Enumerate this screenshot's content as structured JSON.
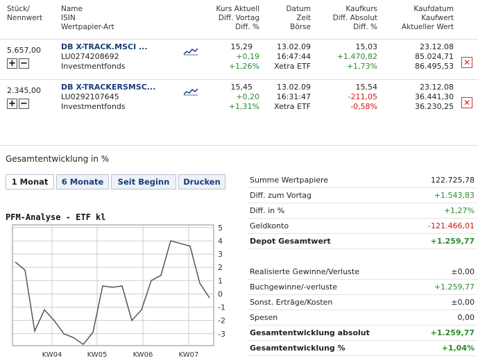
{
  "columns": {
    "col1": [
      "Stück/",
      "Nennwert"
    ],
    "col2": [
      "Name",
      "ISIN",
      "Wertpapier-Art"
    ],
    "col3": [
      "Kurs Aktuell",
      "Diff. Vortag",
      "Diff. %"
    ],
    "col4": [
      "Datum",
      "Zeit",
      "Börse"
    ],
    "col5": [
      "Kaufkurs",
      "Diff. Absolut",
      "Diff. %"
    ],
    "col6": [
      "Kaufdatum",
      "Kaufwert",
      "Aktueller Wert"
    ]
  },
  "positions": [
    {
      "qty": "5.657,00",
      "name": "DB X-TRACK.MSCI ...",
      "isin": "LU0274208692",
      "type": "Investmentfonds",
      "price": "15,29",
      "diff_prev": "+0,19",
      "diff_pct": "+1,26%",
      "date": "13.02.09",
      "time": "16:47:44",
      "exchange": "Xetra ETF",
      "buy_price": "15,03",
      "diff_abs": "+1.470,82",
      "diff_abs_pct": "+1,73%",
      "buy_date": "23.12.08",
      "buy_value": "85.024,71",
      "current_value": "86.495,53"
    },
    {
      "qty": "2.345,00",
      "name": "DB X-TRACKERSMSC...",
      "isin": "LU0292107645",
      "type": "Investmentfonds",
      "price": "15,45",
      "diff_prev": "+0,20",
      "diff_pct": "+1,31%",
      "date": "13.02.09",
      "time": "16:31:47",
      "exchange": "Xetra ETF",
      "buy_price": "15,54",
      "diff_abs": "-211,05",
      "diff_abs_pct": "-0,58%",
      "buy_date": "23.12.08",
      "buy_value": "36.441,30",
      "current_value": "36.230,25"
    }
  ],
  "icons": {
    "plus": "+",
    "minus": "−",
    "remove": "✕"
  },
  "section_title": "Gesamtentwicklung in %",
  "tabs": [
    "1 Monat",
    "6 Monate",
    "Seit Beginn",
    "Drucken"
  ],
  "chart_title": "PFM-Analyse - ETF kl",
  "chart_data": {
    "type": "line",
    "x_ticks": [
      "KW04",
      "KW05",
      "KW06",
      "KW07"
    ],
    "y_ticks": [
      5,
      4,
      3,
      2,
      1,
      0,
      -1,
      -2,
      -3
    ],
    "ylim": [
      -3.9,
      5.2
    ],
    "series": [
      {
        "values": [
          2.4,
          1.8,
          -2.8,
          -1.2,
          -2.0,
          -3.0,
          -3.3,
          -3.8,
          -2.9,
          0.6,
          0.5,
          0.6,
          -2.0,
          -1.2,
          1.0,
          1.4,
          4.0,
          3.8,
          3.6,
          0.8,
          -0.3
        ]
      }
    ],
    "colors": {
      "line": "#555555",
      "grid": "#cccccc"
    }
  },
  "summary": [
    {
      "label": "Summe Wertpapiere",
      "value": "122.725,78",
      "style": "plain"
    },
    {
      "label": "Diff. zum Vortag",
      "value": "+1.543,83",
      "style": "pos"
    },
    {
      "label": "Diff. in %",
      "value": "+1,27%",
      "style": "pos"
    },
    {
      "label": "Geldkonto",
      "value": "-121.466,01",
      "style": "neg"
    },
    {
      "label": "Depot Gesamtwert",
      "value": "+1.259,77",
      "style": "bold-pos"
    },
    {
      "label": "Realisierte Gewinne/Verluste",
      "value": "±0,00",
      "style": "plain"
    },
    {
      "label": "Buchgewinne/-verluste",
      "value": "+1.259,77",
      "style": "pos"
    },
    {
      "label": "Sonst. Erträge/Kosten",
      "value": "±0,00",
      "style": "plain"
    },
    {
      "label": "Spesen",
      "value": "0,00",
      "style": "plain"
    },
    {
      "label": "Gesamtentwicklung absolut",
      "value": "+1.259,77",
      "style": "bold-pos"
    },
    {
      "label": "Gesamtentwicklung %",
      "value": "+1,04%",
      "style": "bold-pos"
    }
  ]
}
